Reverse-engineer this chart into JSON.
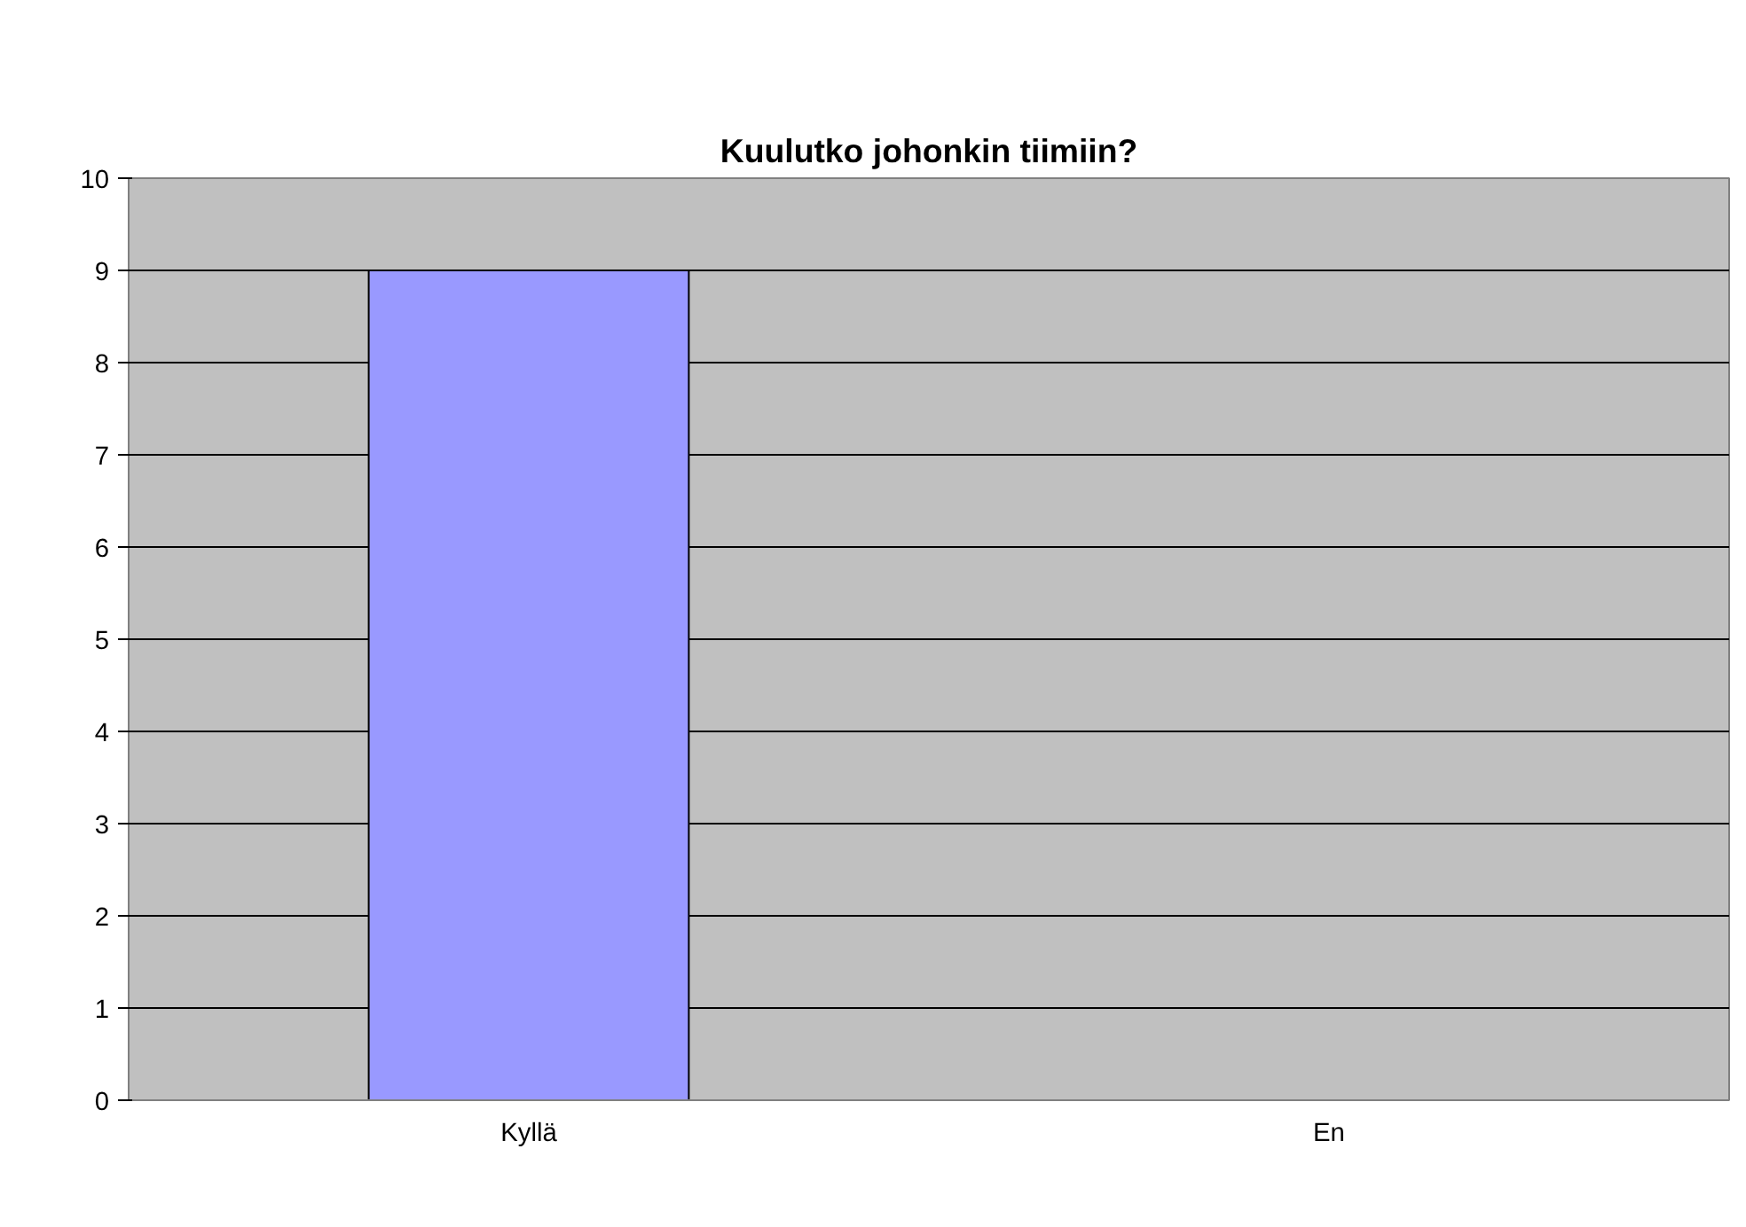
{
  "chart_data": {
    "type": "bar",
    "title": "Kuulutko johonkin tiimiin?",
    "categories": [
      "Kyllä",
      "En"
    ],
    "values": [
      9,
      0
    ],
    "color": "#9999ff",
    "ylim": [
      0,
      10
    ],
    "yticks": [
      0,
      1,
      2,
      3,
      4,
      5,
      6,
      7,
      8,
      9,
      10
    ],
    "grid": "y"
  }
}
